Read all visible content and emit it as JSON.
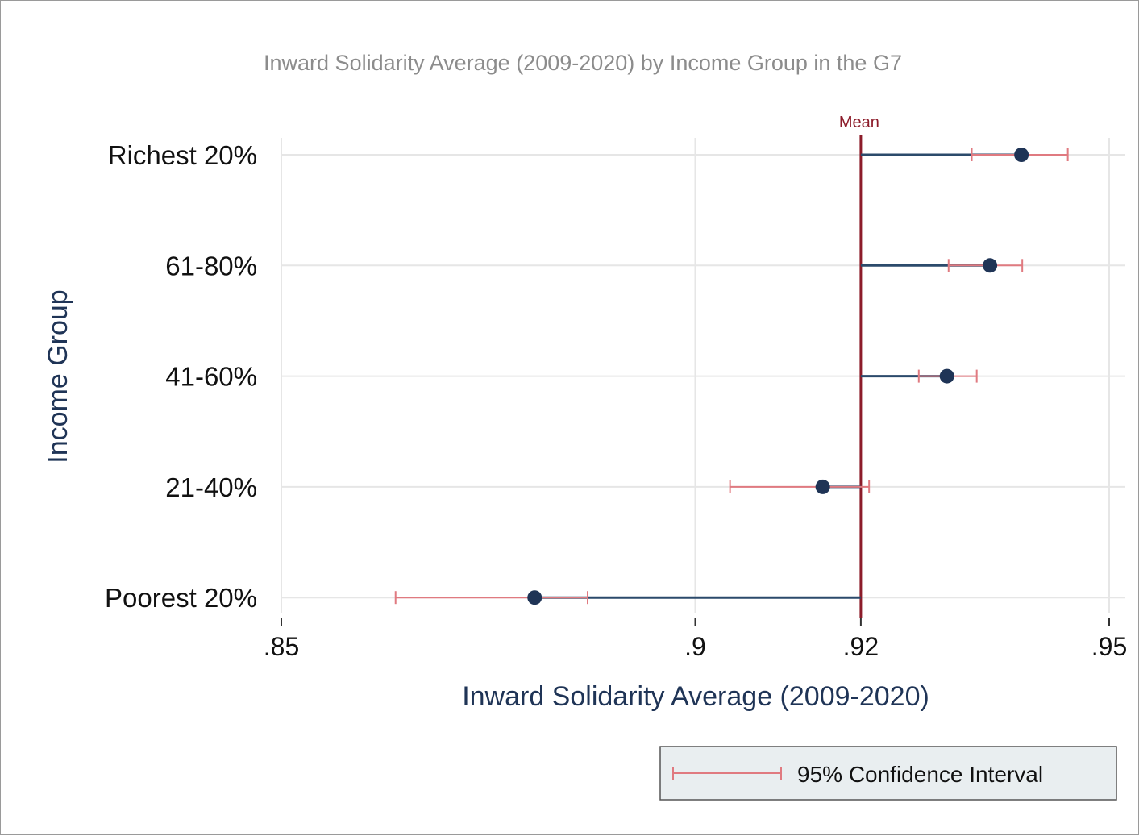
{
  "chart_data": {
    "type": "dot-range",
    "title": "Inward Solidarity Average (2009-2020) by Income Group in the G7",
    "xlabel": "Inward Solidarity Average (2009-2020)",
    "ylabel": "Income Group",
    "xlim": [
      0.85,
      0.95
    ],
    "x_ticks": [
      {
        "value": 0.85,
        "label": ".85"
      },
      {
        "value": 0.9,
        "label": ".9"
      },
      {
        "value": 0.92,
        "label": ".92"
      },
      {
        "value": 0.95,
        "label": ".95"
      }
    ],
    "reference_line": {
      "value": 0.92,
      "label": "Mean"
    },
    "categories": [
      "Richest 20%",
      "61-80%",
      "41-60%",
      "21-40%",
      "Poorest 20%"
    ],
    "values": [
      0.9394,
      0.9356,
      0.9304,
      0.9154,
      0.8806
    ],
    "ci_low": [
      0.9334,
      0.9306,
      0.927,
      0.9042,
      0.8638
    ],
    "ci_high": [
      0.945,
      0.9395,
      0.934,
      0.921,
      0.887
    ],
    "legend": {
      "entries": [
        "95% Confidence Interval"
      ],
      "position": "bottom-right"
    },
    "grid": true,
    "colors": {
      "point": "#1f3456",
      "stem": "#2b4a6b",
      "ci": "#e07a80",
      "mean": "#8c1c2a",
      "grid": "#e6e6e6",
      "axis_title": "#1f3456",
      "legend_bg": "#e9eef0"
    }
  }
}
